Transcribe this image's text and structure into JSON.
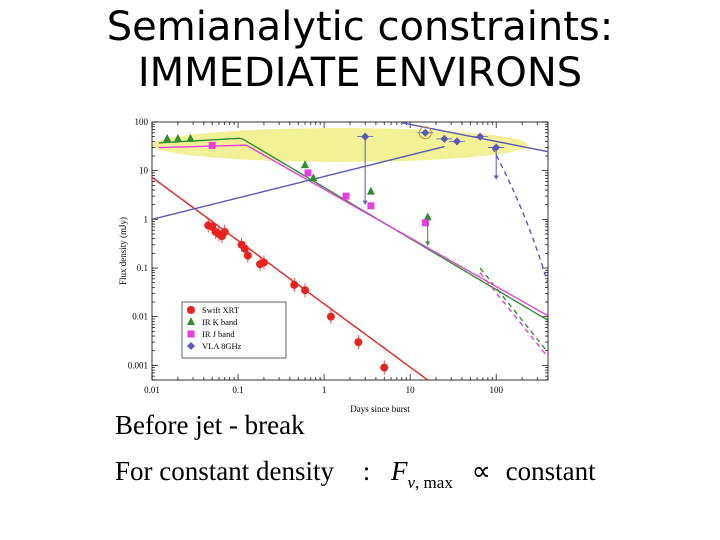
{
  "slide": {
    "title_line1": "Semianalytic constraints:",
    "title_line2": "IMMEDIATE ENVIRONS",
    "bullet1": "Before jet - break",
    "bullet2_prefix": "For constant density",
    "bullet2_colon": ":",
    "bullet2_symbol": "F",
    "bullet2_sub_nu": "ν",
    "bullet2_sub_max": ", max",
    "bullet2_prop": "∝",
    "bullet2_suffix": "constant"
  },
  "chart_data": {
    "type": "scatter",
    "xlabel": "Days since burst",
    "ylabel": "Flux density (mJy)",
    "xscale": "log",
    "yscale": "log",
    "xlim": [
      0.01,
      400
    ],
    "ylim": [
      0.0005,
      100
    ],
    "x_ticks": [
      "0.01",
      "0.1",
      "1",
      "10",
      "100"
    ],
    "y_ticks": [
      "100",
      "10",
      "1",
      "0.1",
      "0.01",
      "0.001"
    ],
    "legend_position": "bottom-left",
    "highlight_color": "#f2ef8c",
    "series": [
      {
        "name": "Swift XRT",
        "color": "#e8231f",
        "marker": "circle",
        "points": [
          [
            0.045,
            0.75
          ],
          [
            0.05,
            0.7
          ],
          [
            0.055,
            0.55
          ],
          [
            0.06,
            0.5
          ],
          [
            0.065,
            0.45
          ],
          [
            0.07,
            0.55
          ],
          [
            0.11,
            0.3
          ],
          [
            0.12,
            0.25
          ],
          [
            0.13,
            0.18
          ],
          [
            0.18,
            0.12
          ],
          [
            0.2,
            0.13
          ],
          [
            0.45,
            0.045
          ],
          [
            0.6,
            0.035
          ],
          [
            1.2,
            0.01
          ],
          [
            2.5,
            0.003
          ],
          [
            5,
            0.0009
          ]
        ]
      },
      {
        "name": "IR K band",
        "color": "#2f8f2f",
        "marker": "triangle",
        "points": [
          [
            0.015,
            45
          ],
          [
            0.02,
            45
          ],
          [
            0.028,
            45
          ],
          [
            0.6,
            13
          ],
          [
            0.75,
            7
          ],
          [
            3.5,
            3.7
          ],
          [
            16,
            1.1
          ]
        ]
      },
      {
        "name": "IR J band",
        "color": "#e63fe0",
        "marker": "square",
        "points": [
          [
            0.05,
            33
          ],
          [
            0.65,
            9
          ],
          [
            1.8,
            3
          ],
          [
            3.5,
            1.9
          ],
          [
            15,
            0.85
          ]
        ]
      },
      {
        "name": "VLA 8GHz",
        "color": "#5a58b8",
        "marker": "diamond",
        "points": [
          [
            3,
            50
          ],
          [
            15,
            60
          ],
          [
            25,
            45
          ],
          [
            35,
            40
          ],
          [
            65,
            50
          ],
          [
            100,
            30
          ]
        ]
      }
    ]
  }
}
